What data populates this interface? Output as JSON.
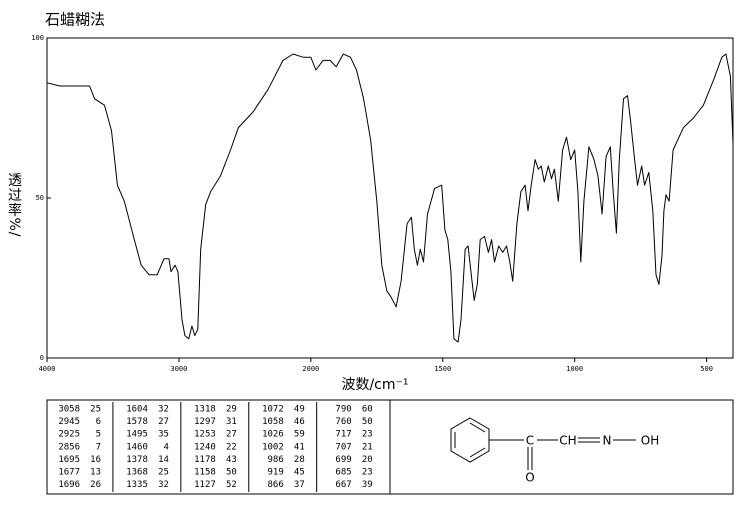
{
  "chart_data": {
    "type": "line",
    "title": "石蜡糊法",
    "xlabel": "波数/cm⁻¹",
    "ylabel": "透过率%/",
    "xlim": [
      4000,
      400
    ],
    "ylim": [
      0,
      100
    ],
    "xticks": [
      4000,
      3000,
      2000,
      1500,
      1000,
      500
    ],
    "yticks": [
      0,
      50,
      100
    ],
    "color": "#000000",
    "x": [
      4000,
      3902,
      3677,
      3639,
      3564,
      3511,
      3466,
      3414,
      3338,
      3286,
      3226,
      3165,
      3113,
      3075,
      3060,
      3030,
      3008,
      2977,
      2955,
      2925,
      2902,
      2880,
      2857,
      2835,
      2797,
      2759,
      2684,
      2609,
      2549,
      2436,
      2323,
      2211,
      2135,
      2060,
      2000,
      1981,
      1954,
      1927,
      1904,
      1877,
      1850,
      1827,
      1800,
      1773,
      1750,
      1731,
      1712,
      1696,
      1677,
      1658,
      1635,
      1619,
      1608,
      1596,
      1585,
      1573,
      1558,
      1531,
      1504,
      1492,
      1481,
      1469,
      1458,
      1442,
      1431,
      1415,
      1404,
      1392,
      1381,
      1369,
      1358,
      1342,
      1327,
      1315,
      1304,
      1288,
      1273,
      1258,
      1246,
      1235,
      1219,
      1204,
      1188,
      1177,
      1165,
      1150,
      1138,
      1127,
      1115,
      1100,
      1088,
      1077,
      1062,
      1046,
      1031,
      1015,
      1000,
      988,
      977,
      965,
      946,
      927,
      912,
      896,
      881,
      865,
      854,
      842,
      831,
      815,
      800,
      788,
      773,
      762,
      746,
      735,
      719,
      704,
      692,
      681,
      669,
      662,
      654,
      642,
      627,
      588,
      550,
      512,
      473,
      442,
      427,
      410,
      400
    ],
    "values": [
      86,
      85,
      85,
      81,
      79,
      71,
      54,
      49,
      37,
      29,
      26,
      26,
      31,
      31,
      27,
      29,
      27,
      12,
      7,
      6,
      10,
      7,
      9,
      34,
      48,
      52,
      57,
      65,
      72,
      77,
      84,
      93,
      95,
      94,
      94,
      90,
      93,
      93,
      91,
      95,
      94,
      90,
      81,
      68,
      49,
      29,
      21,
      19,
      16,
      24,
      42,
      44,
      34,
      29,
      34,
      30,
      45,
      53,
      54,
      40,
      37,
      27,
      6,
      5,
      12,
      34,
      35,
      26,
      18,
      23,
      37,
      38,
      33,
      37,
      30,
      35,
      33,
      35,
      30,
      24,
      42,
      52,
      54,
      46,
      54,
      62,
      59,
      60,
      55,
      60,
      56,
      59,
      49,
      65,
      69,
      62,
      65,
      52,
      30,
      49,
      66,
      62,
      57,
      45,
      63,
      66,
      52,
      39,
      62,
      81,
      82,
      74,
      62,
      54,
      60,
      54,
      58,
      46,
      26,
      23,
      32,
      46,
      51,
      49,
      65,
      72,
      75,
      79,
      87,
      94,
      95,
      88,
      67
    ]
  },
  "peak_table": [
    [
      [
        3058,
        25
      ],
      [
        2945,
        6
      ],
      [
        2925,
        5
      ],
      [
        2856,
        7
      ],
      [
        1695,
        16
      ],
      [
        1677,
        13
      ],
      [
        1696,
        26
      ]
    ],
    [
      [
        1604,
        32
      ],
      [
        1578,
        27
      ],
      [
        1495,
        35
      ],
      [
        1460,
        4
      ],
      [
        1378,
        14
      ],
      [
        1368,
        25
      ],
      [
        1335,
        32
      ]
    ],
    [
      [
        1318,
        29
      ],
      [
        1297,
        31
      ],
      [
        1253,
        27
      ],
      [
        1240,
        22
      ],
      [
        1178,
        43
      ],
      [
        1158,
        50
      ],
      [
        1127,
        52
      ]
    ],
    [
      [
        1072,
        49
      ],
      [
        1058,
        46
      ],
      [
        1026,
        59
      ],
      [
        1002,
        41
      ],
      [
        986,
        28
      ],
      [
        919,
        45
      ],
      [
        866,
        37
      ]
    ],
    [
      [
        790,
        60
      ],
      [
        760,
        50
      ],
      [
        717,
        23
      ],
      [
        707,
        21
      ],
      [
        699,
        20
      ],
      [
        685,
        23
      ],
      [
        667,
        39
      ]
    ]
  ],
  "structure": {
    "labels": [
      "C",
      "CH",
      "N",
      "OH",
      "O"
    ]
  }
}
